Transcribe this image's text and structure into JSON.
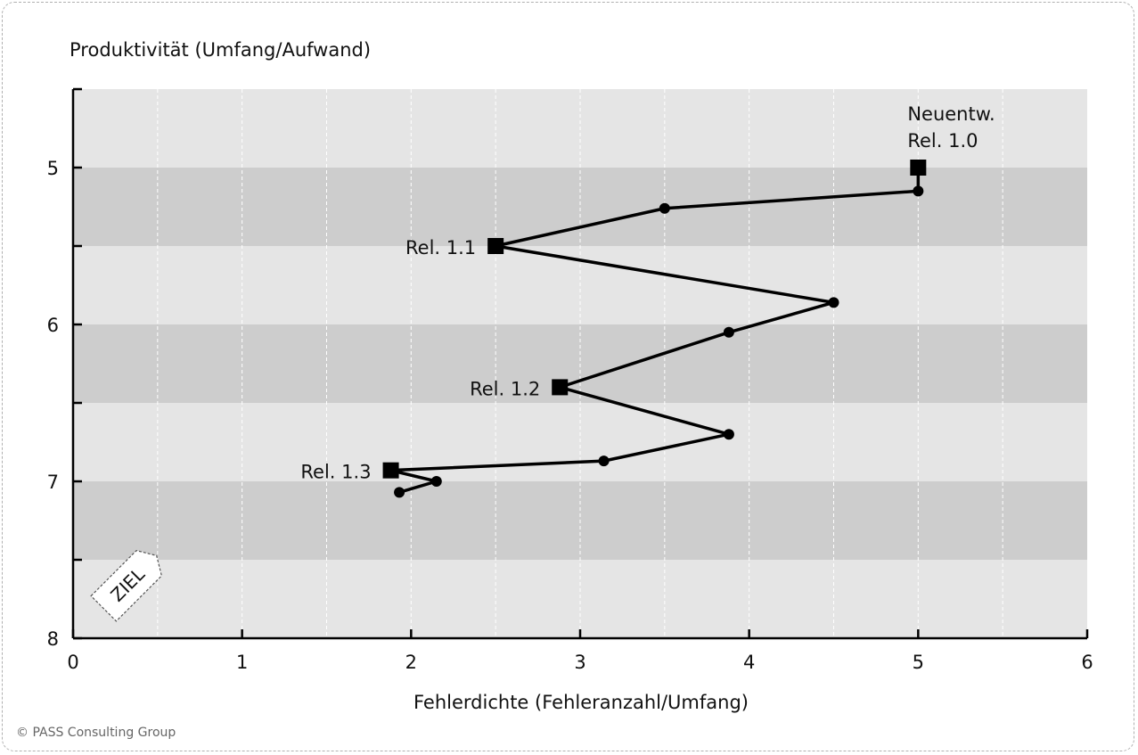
{
  "chart_data": {
    "type": "line",
    "ylabel": "Produktivität (Umfang/Aufwand)",
    "xlabel": "Fehlerdichte (Fehleranzahl/Umfang)",
    "xlim": [
      0,
      6
    ],
    "ylim": [
      4.5,
      8
    ],
    "y_inverted": true,
    "x_ticks": [
      0,
      1,
      2,
      3,
      4,
      5,
      6
    ],
    "x_tick_labels": [
      "0",
      "1",
      "2",
      "3",
      "4",
      "5",
      "6"
    ],
    "y_ticks": [
      5,
      6,
      7,
      8
    ],
    "y_tick_labels": [
      "5",
      "6",
      "7",
      "8"
    ],
    "grid": "vertical dashed at 0.5 intervals",
    "bands": [
      [
        5,
        5.5
      ],
      [
        6,
        6.5
      ],
      [
        7,
        7.5
      ]
    ],
    "points": [
      {
        "x": 5.0,
        "y": 5.0,
        "marker": "square"
      },
      {
        "x": 5.0,
        "y": 5.15,
        "marker": "circle"
      },
      {
        "x": 3.5,
        "y": 5.26,
        "marker": "circle"
      },
      {
        "x": 2.5,
        "y": 5.5,
        "marker": "square"
      },
      {
        "x": 4.5,
        "y": 5.86,
        "marker": "circle"
      },
      {
        "x": 3.88,
        "y": 6.05,
        "marker": "circle"
      },
      {
        "x": 2.88,
        "y": 6.4,
        "marker": "square"
      },
      {
        "x": 3.88,
        "y": 6.7,
        "marker": "circle"
      },
      {
        "x": 3.14,
        "y": 6.87,
        "marker": "circle"
      },
      {
        "x": 1.88,
        "y": 6.93,
        "marker": "square"
      },
      {
        "x": 2.15,
        "y": 7.0,
        "marker": "circle"
      },
      {
        "x": 1.93,
        "y": 7.07,
        "marker": "circle"
      }
    ],
    "annotations": [
      {
        "text": "Neuentw.",
        "x": 5.0,
        "y": 5.0
      },
      {
        "text": "Rel. 1.0",
        "x": 5.0,
        "y": 5.0
      },
      {
        "text": "Rel. 1.1",
        "x": 2.5,
        "y": 5.5
      },
      {
        "text": "Rel. 1.2",
        "x": 2.88,
        "y": 6.4
      },
      {
        "text": "Rel. 1.3",
        "x": 1.88,
        "y": 6.93
      }
    ],
    "target_tag": "ZIEL"
  },
  "copyright": "© PASS Consulting Group"
}
